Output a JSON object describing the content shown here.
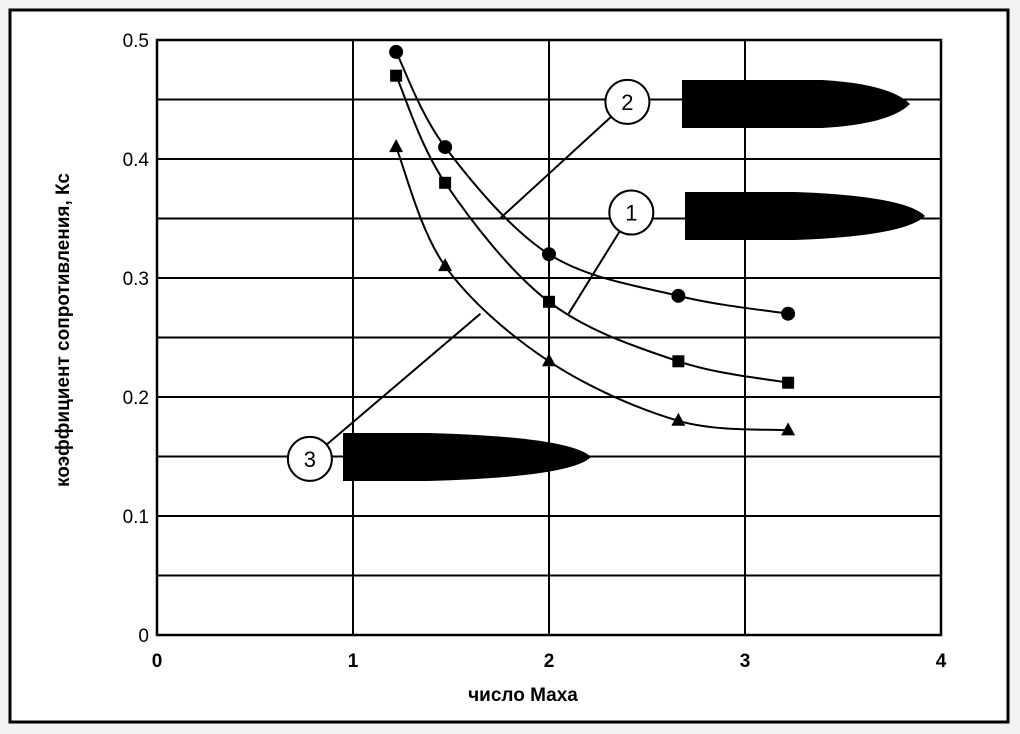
{
  "chart_data": {
    "type": "line",
    "title": "",
    "xlabel": "число Маха",
    "ylabel": "коэффициент сопротивления, Кс",
    "xlim": [
      0,
      4
    ],
    "ylim": [
      0,
      0.5
    ],
    "x_ticks": [
      {
        "value": 0,
        "label": "0"
      },
      {
        "value": 1,
        "label": "1"
      },
      {
        "value": 2,
        "label": "2"
      },
      {
        "value": 3,
        "label": "3"
      },
      {
        "value": 4,
        "label": "4"
      }
    ],
    "y_ticks": [
      {
        "value": 0,
        "label": "0"
      },
      {
        "value": 0.1,
        "label": "0.1"
      },
      {
        "value": 0.2,
        "label": "0.2"
      },
      {
        "value": 0.3,
        "label": "0.3"
      },
      {
        "value": 0.4,
        "label": "0.4"
      },
      {
        "value": 0.5,
        "label": "0.5"
      }
    ],
    "grid": true,
    "series": [
      {
        "label": "2",
        "marker": "circle",
        "x": [
          1.22,
          1.47,
          2.0,
          2.66,
          3.22
        ],
        "y": [
          0.49,
          0.41,
          0.32,
          0.285,
          0.27
        ]
      },
      {
        "label": "1",
        "marker": "square",
        "x": [
          1.22,
          1.47,
          2.0,
          2.66,
          3.22
        ],
        "y": [
          0.47,
          0.38,
          0.28,
          0.23,
          0.212
        ]
      },
      {
        "label": "3",
        "marker": "triangle",
        "x": [
          1.22,
          1.47,
          2.0,
          2.66,
          3.22
        ],
        "y": [
          0.41,
          0.31,
          0.23,
          0.18,
          0.172
        ]
      }
    ],
    "callouts": [
      {
        "label": "2",
        "target_x": 1.75,
        "target_y": 0.35,
        "circle_x": 2.4,
        "circle_y": 0.448,
        "shape": "blunt"
      },
      {
        "label": "1",
        "target_x": 2.1,
        "target_y": 0.27,
        "circle_x": 2.42,
        "circle_y": 0.355,
        "shape": "medium"
      },
      {
        "label": "3",
        "target_x": 1.65,
        "target_y": 0.27,
        "circle_x": 0.78,
        "circle_y": 0.148,
        "shape": "pointed"
      }
    ]
  }
}
